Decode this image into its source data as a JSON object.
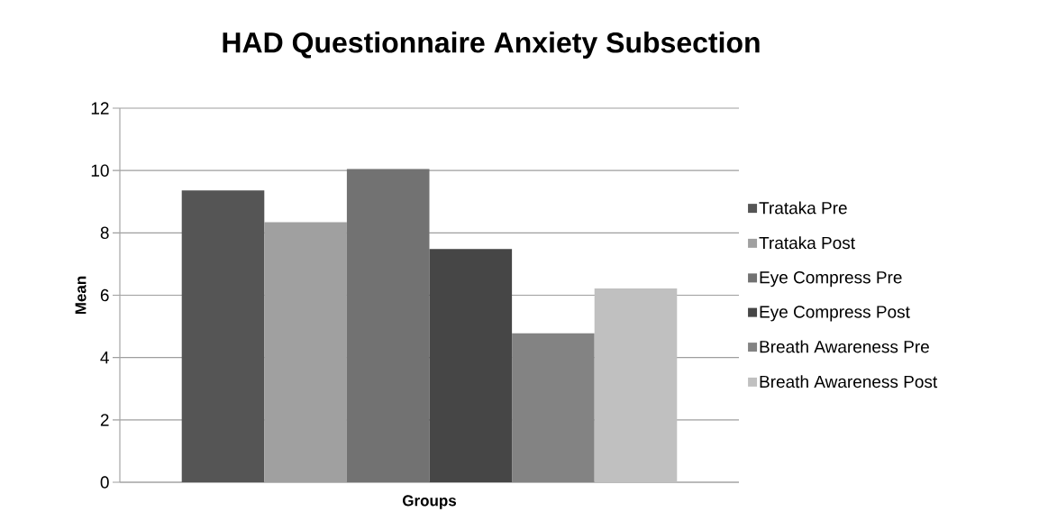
{
  "chart_data": {
    "type": "bar",
    "title": "HAD Questionnaire Anxiety Subsection",
    "xlabel": "Groups",
    "ylabel": "Mean",
    "categories": [
      null
    ],
    "series": [
      {
        "name": "Trataka Pre",
        "color": "#555555",
        "values": [
          9.36
        ]
      },
      {
        "name": "Trataka Post",
        "color": "#a0a0a0",
        "values": [
          8.34
        ]
      },
      {
        "name": "Eye Compress Pre",
        "color": "#727272",
        "values": [
          10.05
        ]
      },
      {
        "name": "Eye Compress Post",
        "color": "#464646",
        "values": [
          7.48
        ]
      },
      {
        "name": "Breath Awareness Pre",
        "color": "#838383",
        "values": [
          4.78
        ]
      },
      {
        "name": "Breath Awareness Post",
        "color": "#c0c0c0",
        "values": [
          6.22
        ]
      }
    ],
    "ylim": [
      0,
      12
    ],
    "yticks": [
      0,
      2,
      4,
      6,
      8,
      10,
      12
    ],
    "grid": "y",
    "legend": "right"
  }
}
